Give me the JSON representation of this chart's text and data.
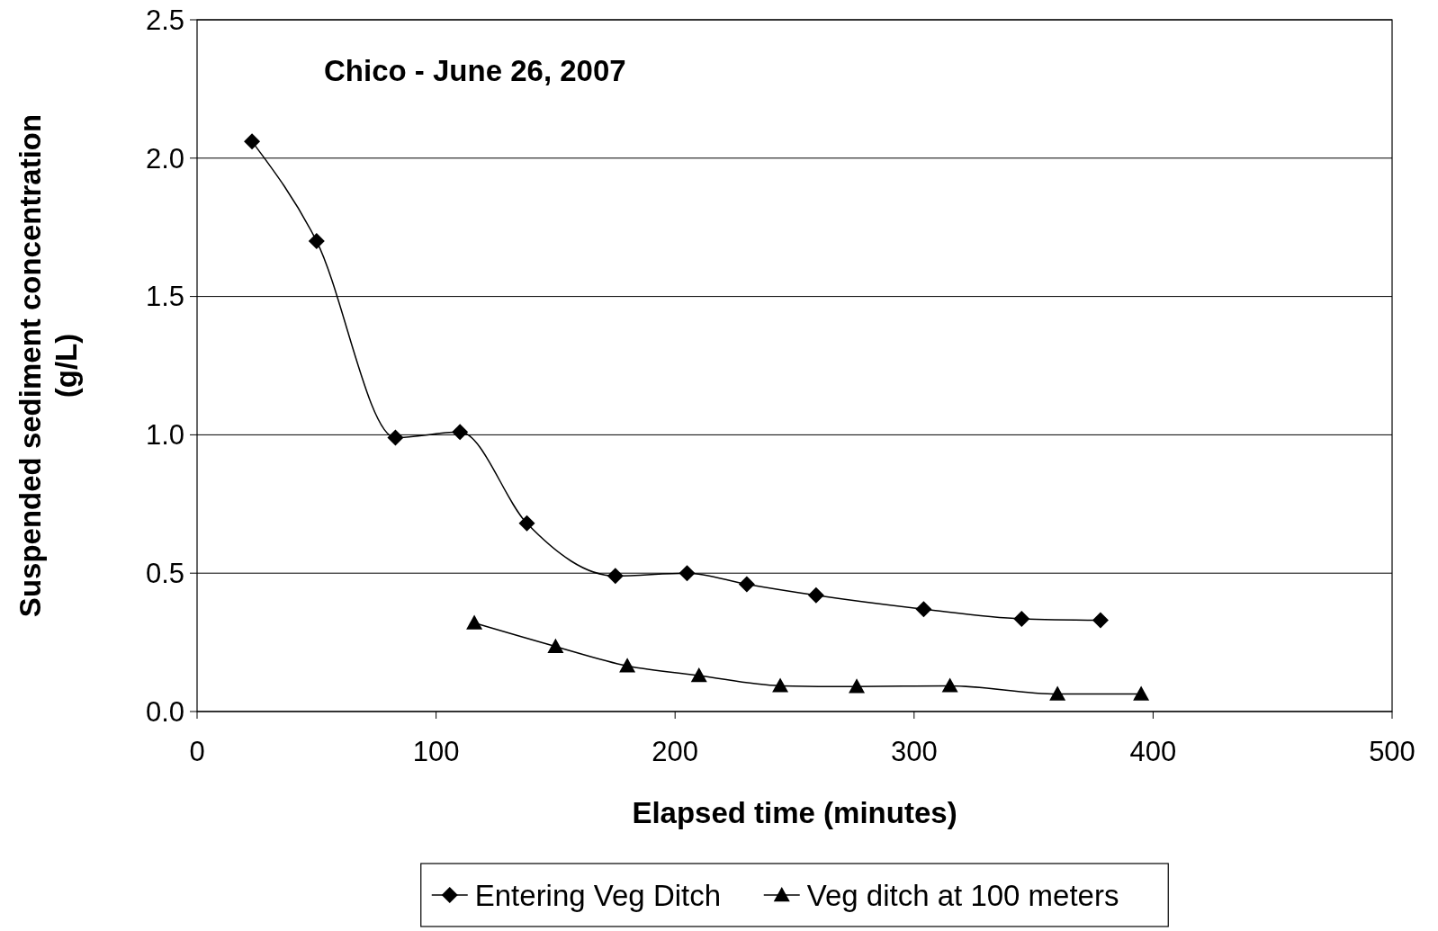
{
  "chart_data": {
    "type": "line",
    "title": "Chico - June 26, 2007",
    "xlabel": "Elapsed time (minutes)",
    "ylabel": "Suspended sediment concentration (g/L)",
    "series": [
      {
        "name": "Entering Veg Ditch",
        "color": "#000000",
        "marker": "diamond",
        "x": [
          23,
          50,
          83,
          110,
          138,
          175,
          205,
          230,
          259,
          304,
          345,
          378
        ],
        "values": [
          2.06,
          1.7,
          0.99,
          1.01,
          0.68,
          0.49,
          0.5,
          0.46,
          0.42,
          0.37,
          0.335,
          0.33
        ]
      },
      {
        "name": "Veg ditch at 100 meters",
        "color": "#000000",
        "marker": "triangle",
        "x": [
          116,
          150,
          180,
          210,
          244,
          276,
          315,
          360,
          395
        ],
        "values": [
          0.32,
          0.235,
          0.165,
          0.13,
          0.093,
          0.09,
          0.093,
          0.063,
          0.063
        ]
      }
    ],
    "xlim": [
      0,
      500
    ],
    "xticks": [
      0,
      100,
      200,
      300,
      400,
      500
    ],
    "ylim": [
      0,
      2.5
    ],
    "yticks": [
      {
        "value": 0,
        "label": "0.0"
      },
      {
        "value": 0.5,
        "label": "0.5"
      },
      {
        "value": 1,
        "label": "1.0"
      },
      {
        "value": 1.5,
        "label": "1.5"
      },
      {
        "value": 2,
        "label": "2.0"
      },
      {
        "value": 2.5,
        "label": "2.5"
      }
    ],
    "grid": "y",
    "legend": "bottom",
    "line_style": "solid"
  }
}
